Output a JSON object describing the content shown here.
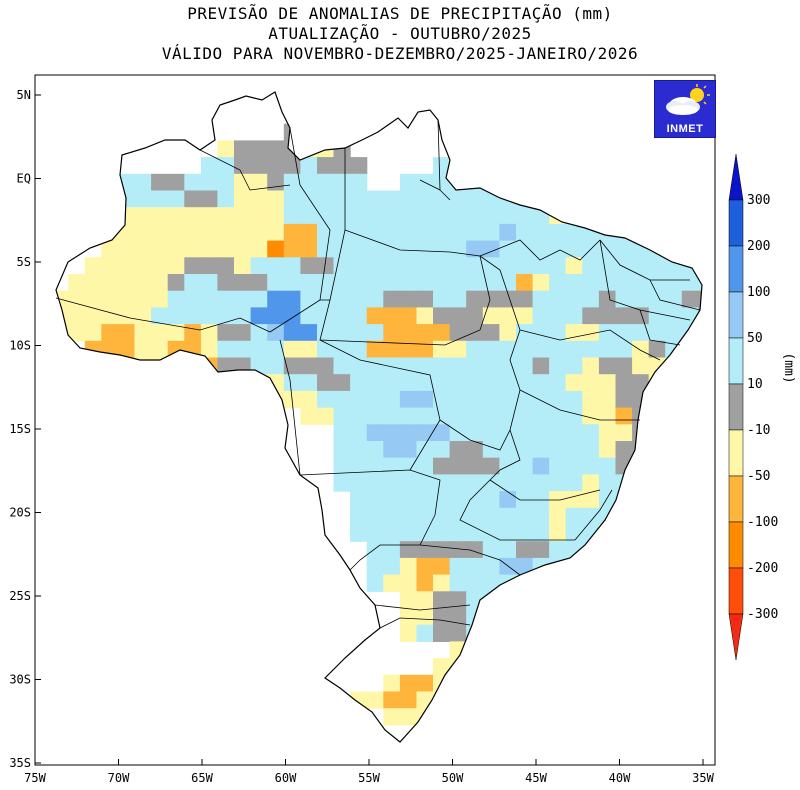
{
  "title": {
    "line1": "PREVISÃO DE ANOMALIAS DE PRECIPITAÇÃO (mm)",
    "line2": "ATUALIZAÇÃO - OUTUBRO/2025",
    "line3": "VÁLIDO PARA NOVEMBRO-DEZEMBRO/2025-JANEIRO/2026"
  },
  "logo": {
    "text": "INMET",
    "icon": "weather-cloud-sun-icon",
    "color": "#2a2bd0"
  },
  "axes": {
    "lat_labels": [
      "5N",
      "EQ",
      "5S",
      "10S",
      "15S",
      "20S",
      "25S",
      "30S",
      "35S"
    ],
    "lon_labels": [
      "75W",
      "70W",
      "65W",
      "60W",
      "55W",
      "50W",
      "45W",
      "40W",
      "35W"
    ],
    "lat_range": [
      -35,
      5
    ],
    "lon_range": [
      -75,
      -34
    ]
  },
  "legend": {
    "unit": "(mm)",
    "labels": [
      "300",
      "200",
      "100",
      "50",
      "10",
      "-10",
      "-50",
      "-100",
      "-200",
      "-300"
    ],
    "colors": [
      "#0a14c8",
      "#1e5fdc",
      "#5096ea",
      "#96caf5",
      "#b4ecf8",
      "#a0a0a0",
      "#fff7a8",
      "#ffb43c",
      "#ff8c00",
      "#ff4e0a",
      "#f52a14"
    ]
  },
  "classes": {
    "D": "#a0a0a0",
    "Y": "#fff7a8",
    "O": "#ffb43c",
    "R": "#ff8c00",
    "C": "#b4ecf8",
    "L": "#96caf5",
    "M": "#5096ea"
  },
  "grid": {
    "cell_deg": 1,
    "origin_lon": -75,
    "origin_lat": 5,
    "rows": [
      "......................................................",
      ".........................................",
      "...............DYY...........Y..........",
      "...........YDDDDYYD.......CCDDC.D.....",
      "..........CCDDDDCDDD....CCCCCCCYYY....",
      ".....CCDDCCCYYDCCCCC..CCCCCCDDDCCYYY.......",
      "....CCCCCDDCYYYCCCCCCCCCCCCCCCDDDCCOOOYOO....",
      "....YYYYYYYYYYYCCCCCCCCCCCCCCCCYYODYYYYCCC...",
      "....YYYYYYYYYYYOOCCCCCCCCCCCLCCCCCCCCCCCCCCDDDC..",
      "....YYYYYYYYYYROOCCCCCCCCCLLCCCCCCCCCCCLCCDDDDCCC.",
      "...YYYYYYDDDYCCCDDCCCCCCCCCCCCCCYCCCCCCCCCCCCCCCC",
      "..YYYYYYDCCDDDCCCCCCCCCCCCCCCOYCCCCCCCCCCDCCDCCCCC",
      ".YYYYYYYCCCCCCMMCCCCCDDDCCDDDDCCCCDCCCCDDCCCCCCCC",
      ".YYYYYYCCCCCCMMMCCCCOOOYDDDYYYCCCDDDDCCCDCCCCCCC",
      ".YYYOOYYYOYDDCLMMCCCCOOOODDDYCCCYYCCCCCCCCCCCCCC",
      "...OOOYYOOYCCCCYYCCCOOOOYYCCCCCCCCCCYDCCCCCC",
      "...OOYYYOOODDCCDDDCCCCCCCCCCCCDCCYDDYYYCCC",
      "........YYOYYYYCCDDCCCCCCCCCCCCCYYYDDYYY",
      "............YYYYYCCCCCLLCCCCCCCCCYYDDYYY",
      "................YYCCCCCCCCCCCCCCCYYODDY",
      "..................CCLLLLLCCCCCCCCCYYDDYYY",
      "..................CCCLLCCDDCCCCCCCYDDDYO",
      "..................CCCCCCDDDDCCLCCCCDDYYY",
      "..................CCCCCCCCCCCCCCCYCCCCYY",
      "...................CCCCCCCCCLCCYYYCCCC",
      "...................CCCCCCCCCCCCYCCCCC",
      "...................CCCCCCCCCCCCYCCYC",
      "....................CCDDDDDCCDDCCCC",
      "....................CCYOOCCCLLCCC",
      "....................CYYOYCCCCCC",
      "......................YYDDCCCC",
      "......................YYDDCCC",
      "......................YCDDCC",
      ".........................YYDD",
      "........................YYYYDD",
      ".....................YOOYYYDDY",
      "...................YYOOYYYYY",
      ".....................YYYYYY",
      ".......................YOYY",
      ".........................YYC",
      "........................Y"
    ]
  }
}
